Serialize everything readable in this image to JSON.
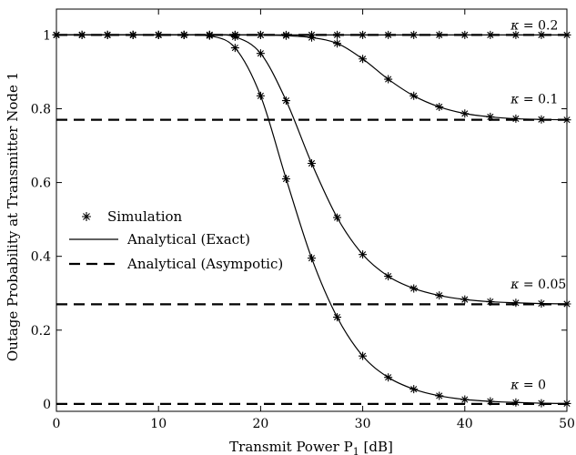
{
  "chart_data": {
    "type": "line",
    "title": "",
    "xlabel": "Transmit Power P",
    "xlabel_sub": "1",
    "xlabel_unit": " [dB]",
    "ylabel": "Outage Probability at Transmitter Node 1",
    "xlim": [
      0,
      50
    ],
    "ylim": [
      -0.02,
      1.07
    ],
    "xticks": [
      0,
      10,
      20,
      30,
      40,
      50
    ],
    "yticks": [
      0,
      0.2,
      0.4,
      0.6,
      0.8,
      1
    ],
    "ytick_labels": [
      "0",
      "0.2",
      "0.4",
      "0.6",
      "0.8",
      "1"
    ],
    "grid": false,
    "legend_position": "center-left",
    "legend": [
      {
        "label": "Simulation",
        "style": "marker"
      },
      {
        "label": "Analytical (Exact)",
        "style": "solid"
      },
      {
        "label": "Analytical (Asympotic)",
        "style": "dashed"
      }
    ],
    "annotations": [
      {
        "symbol": "κ",
        "text": " = 0.2",
        "x": 44.5,
        "y": 1.015
      },
      {
        "symbol": "κ",
        "text": " = 0.1",
        "x": 44.5,
        "y": 0.815
      },
      {
        "symbol": "κ",
        "text": " = 0.05",
        "x": 44.5,
        "y": 0.313
      },
      {
        "symbol": "κ",
        "text": " = 0",
        "x": 44.5,
        "y": 0.04
      }
    ],
    "series": [
      {
        "kappa": 0.2,
        "x": [
          0,
          2.5,
          5,
          7.5,
          10,
          12.5,
          15,
          17.5,
          20,
          22.5,
          25,
          27.5,
          30,
          32.5,
          35,
          37.5,
          40,
          42.5,
          45,
          47.5,
          50
        ],
        "exact": [
          1,
          1,
          1,
          1,
          1,
          1,
          1,
          1,
          1,
          1,
          1,
          1,
          1,
          1,
          1,
          1,
          1,
          1,
          1,
          1,
          1
        ],
        "simulation": [
          1,
          1,
          1,
          1,
          1,
          1,
          1,
          1,
          1,
          1,
          1,
          1,
          1,
          1,
          1,
          1,
          1,
          1,
          1,
          1,
          1
        ],
        "asymptote": 1.0
      },
      {
        "kappa": 0.1,
        "x": [
          0,
          2.5,
          5,
          7.5,
          10,
          12.5,
          15,
          17.5,
          20,
          22.5,
          25,
          27.5,
          30,
          32.5,
          35,
          37.5,
          40,
          42.5,
          45,
          47.5,
          50
        ],
        "exact": [
          1,
          1,
          1,
          1,
          1,
          1,
          1,
          1,
          1,
          0.998,
          0.993,
          0.977,
          0.935,
          0.88,
          0.835,
          0.805,
          0.787,
          0.778,
          0.773,
          0.771,
          0.77
        ],
        "simulation": [
          1,
          1,
          1,
          1,
          1,
          1,
          1,
          1,
          1,
          0.998,
          0.993,
          0.977,
          0.935,
          0.88,
          0.835,
          0.805,
          0.787,
          0.778,
          0.773,
          0.771,
          0.77
        ],
        "asymptote": 0.77
      },
      {
        "kappa": 0.05,
        "x": [
          0,
          2.5,
          5,
          7.5,
          10,
          12.5,
          15,
          17.5,
          20,
          22.5,
          25,
          27.5,
          30,
          32.5,
          35,
          37.5,
          40,
          42.5,
          45,
          47.5,
          50
        ],
        "exact": [
          1,
          1,
          1,
          1,
          1,
          1,
          1,
          0.995,
          0.95,
          0.822,
          0.652,
          0.505,
          0.405,
          0.346,
          0.313,
          0.294,
          0.283,
          0.277,
          0.274,
          0.272,
          0.271
        ],
        "simulation": [
          1,
          1,
          1,
          1,
          1,
          1,
          1,
          0.995,
          0.95,
          0.822,
          0.652,
          0.505,
          0.405,
          0.346,
          0.313,
          0.294,
          0.283,
          0.277,
          0.274,
          0.272,
          0.271
        ],
        "asymptote": 0.27
      },
      {
        "kappa": 0,
        "x": [
          0,
          2.5,
          5,
          7.5,
          10,
          12.5,
          15,
          17.5,
          20,
          22.5,
          25,
          27.5,
          30,
          32.5,
          35,
          37.5,
          40,
          42.5,
          45,
          47.5,
          50
        ],
        "exact": [
          1,
          1,
          1,
          1,
          1,
          1,
          0.998,
          0.965,
          0.835,
          0.61,
          0.395,
          0.235,
          0.13,
          0.072,
          0.04,
          0.022,
          0.012,
          0.007,
          0.004,
          0.002,
          0.001
        ],
        "simulation": [
          1,
          1,
          1,
          1,
          1,
          1,
          0.998,
          0.965,
          0.835,
          0.61,
          0.395,
          0.235,
          0.13,
          0.072,
          0.04,
          0.022,
          0.012,
          0.007,
          0.004,
          0.002,
          0.001
        ],
        "asymptote": 0.0
      }
    ]
  }
}
